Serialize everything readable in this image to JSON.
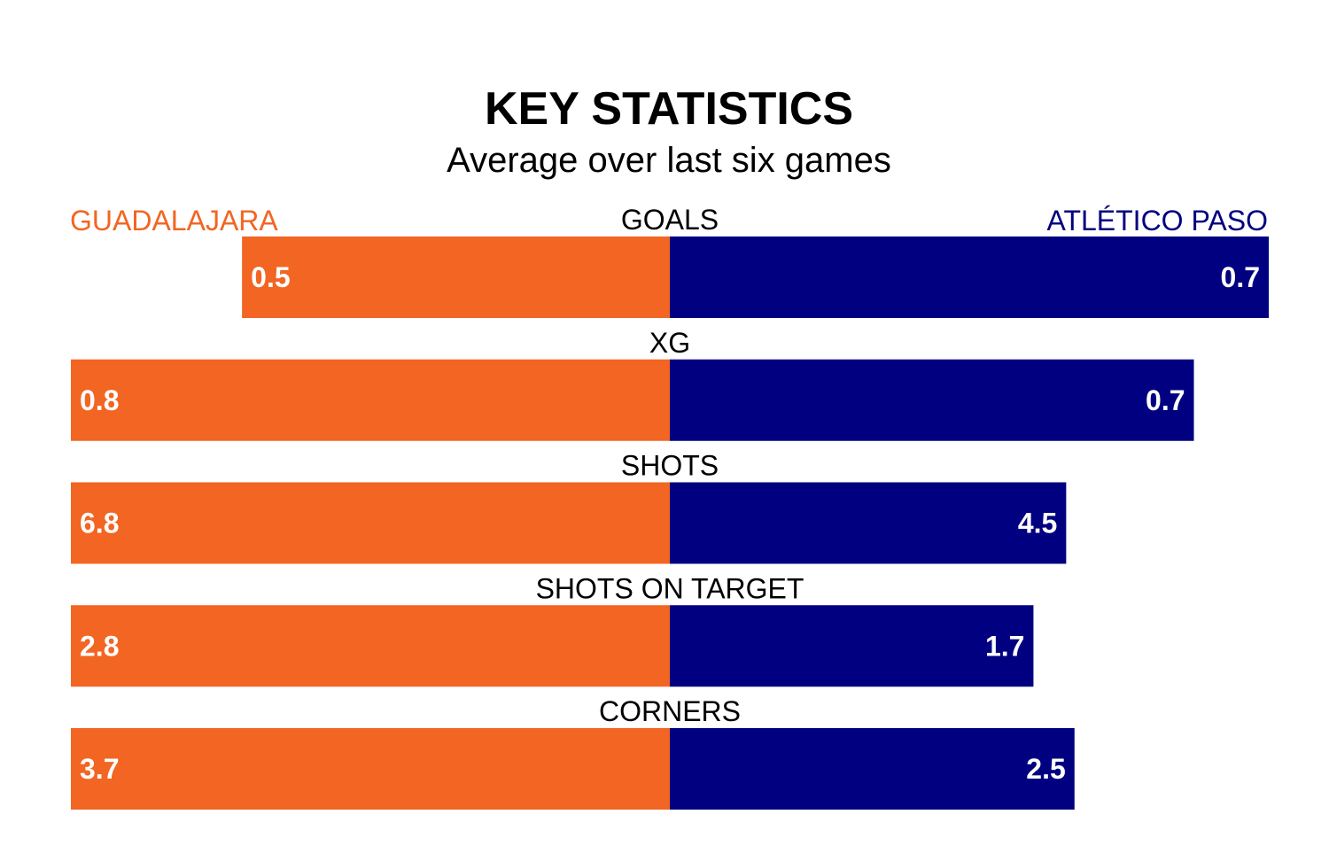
{
  "chart_data": {
    "type": "bar",
    "title": "KEY STATISTICS",
    "subtitle": "Average over last six games",
    "categories": [
      "GOALS",
      "XG",
      "SHOTS",
      "SHOTS ON TARGET",
      "CORNERS"
    ],
    "series": [
      {
        "name": "GUADALAJARA",
        "color": "#f26522",
        "values": [
          0.5,
          0.8,
          6.8,
          2.8,
          3.7
        ],
        "labels": [
          "0.5",
          "0.8",
          "6.8",
          "2.8",
          "3.7"
        ]
      },
      {
        "name": "ATLÉTICO PASO",
        "color": "#000080",
        "values": [
          0.7,
          0.7,
          4.5,
          1.7,
          2.5
        ],
        "labels": [
          "0.7",
          "0.7",
          "4.5",
          "1.7",
          "2.5"
        ]
      }
    ],
    "layout_note_scale": "per-category, larger value of the pair fills its half",
    "legend": "top"
  }
}
